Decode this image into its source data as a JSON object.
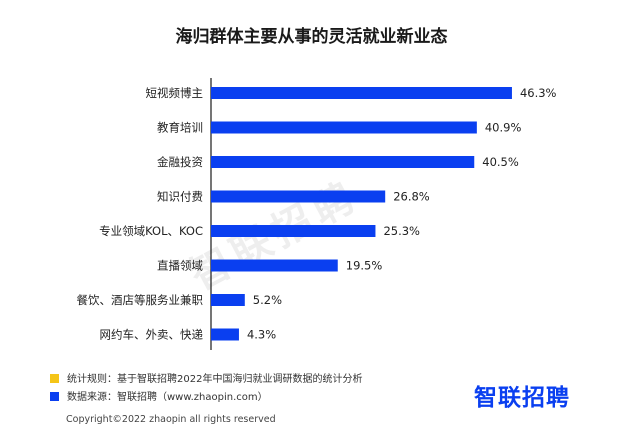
{
  "chart_data": {
    "type": "bar",
    "orientation": "horizontal",
    "title": "海归群体主要从事的灵活就业新业态",
    "categories": [
      "短视频博主",
      "教育培训",
      "金融投资",
      "知识付费",
      "专业领域KOL、KOC",
      "直播领域",
      "餐饮、酒店等服务业兼职",
      "网约车、外卖、快递"
    ],
    "values": [
      46.3,
      40.9,
      40.5,
      26.8,
      25.3,
      19.5,
      5.2,
      4.3
    ],
    "value_labels": [
      "46.3%",
      "40.9%",
      "40.5%",
      "26.8%",
      "25.3%",
      "19.5%",
      "5.2%",
      "4.3%"
    ],
    "xlim": [
      0,
      50
    ],
    "grid": false,
    "bar_color": "#0a3ff0"
  },
  "watermark": "智联招聘",
  "legend": {
    "items": [
      {
        "color": "#f5c518",
        "text": "统计规则：基于智联招聘2022年中国海归就业调研数据的统计分析"
      },
      {
        "color": "#0a3ff0",
        "text": "数据来源：智联招聘（www.zhaopin.com）"
      }
    ]
  },
  "logo_text": "智联招聘",
  "copyright": "Copyright©2022 zhaopin all rights reserved"
}
